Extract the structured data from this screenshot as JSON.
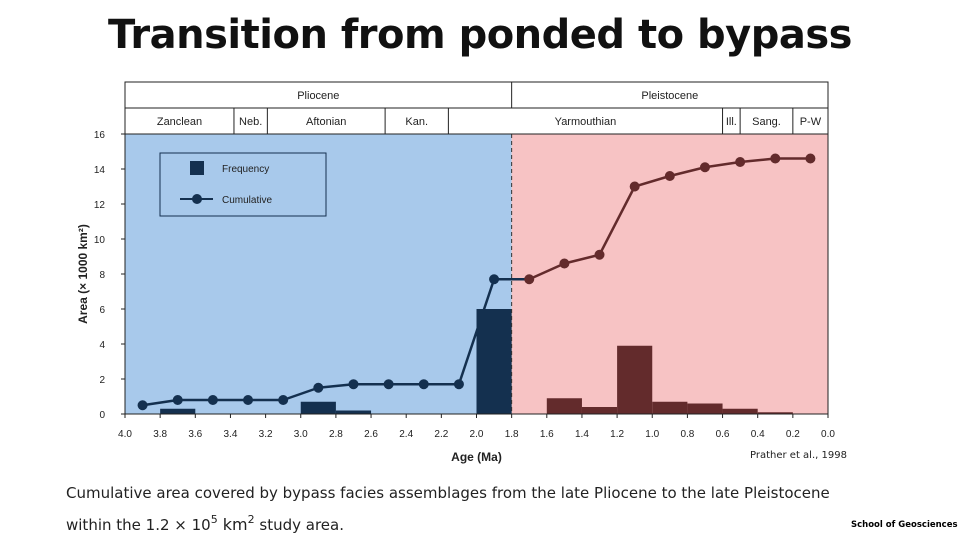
{
  "slide": {
    "title": "Transition from ponded to bypass",
    "caption_line1": "Cumulative area covered by bypass facies assemblages from the late Pliocene to the late Pleistocene",
    "caption_within": "within the 1.2 × 10",
    "caption_exp1": "5",
    "caption_km": " km",
    "caption_exp2": "2",
    "caption_end": "  study area.",
    "citation": "Prather et al., 1998",
    "footer": "School of Geosciences"
  },
  "chart_data": {
    "type": "bar+line",
    "xlabel": "Age (Ma)",
    "ylabel": "Area (× 1000 km²)",
    "xlim": [
      4.0,
      0.0
    ],
    "ylim": [
      0,
      16
    ],
    "x_ticks": [
      "4.0",
      "3.8",
      "3.6",
      "3.4",
      "3.2",
      "3.0",
      "2.8",
      "2.6",
      "2.4",
      "2.2",
      "2.0",
      "1.8",
      "1.6",
      "1.4",
      "1.2",
      "1.0",
      "0.8",
      "0.6",
      "0.4",
      "0.2",
      "0.0"
    ],
    "y_ticks": [
      "0",
      "2",
      "4",
      "6",
      "8",
      "10",
      "12",
      "14",
      "16"
    ],
    "boundary_age": 1.8,
    "legend": {
      "position": "top-left",
      "frequency_label": "Frequency",
      "cumulative_label": "Cumulative"
    },
    "periods": [
      {
        "label": "Pliocene",
        "from": 4.0,
        "to": 1.8
      },
      {
        "label": "Pleistocene",
        "from": 1.8,
        "to": 0.0
      }
    ],
    "stages": [
      {
        "label": "Zanclean",
        "from": 4.0,
        "to": 3.38
      },
      {
        "label": "Neb.",
        "from": 3.38,
        "to": 3.19
      },
      {
        "label": "Aftonian",
        "from": 3.19,
        "to": 2.52
      },
      {
        "label": "Kan.",
        "from": 2.52,
        "to": 2.16
      },
      {
        "label": "Yarmouthian",
        "from": 2.16,
        "to": 0.6
      },
      {
        "label": "Ill.",
        "from": 0.6,
        "to": 0.5
      },
      {
        "label": "Sang.",
        "from": 0.5,
        "to": 0.2
      },
      {
        "label": "P-W",
        "from": 0.2,
        "to": 0.0
      }
    ],
    "series": [
      {
        "name": "Frequency",
        "kind": "bar",
        "bars": [
          {
            "from": 3.8,
            "to": 3.6,
            "value": 0.3
          },
          {
            "from": 3.0,
            "to": 2.8,
            "value": 0.7
          },
          {
            "from": 2.8,
            "to": 2.6,
            "value": 0.2
          },
          {
            "from": 2.0,
            "to": 1.8,
            "value": 6.0
          },
          {
            "from": 1.6,
            "to": 1.4,
            "value": 0.9
          },
          {
            "from": 1.4,
            "to": 1.2,
            "value": 0.4
          },
          {
            "from": 1.2,
            "to": 1.0,
            "value": 3.9
          },
          {
            "from": 1.0,
            "to": 0.8,
            "value": 0.7
          },
          {
            "from": 0.8,
            "to": 0.6,
            "value": 0.6
          },
          {
            "from": 0.6,
            "to": 0.4,
            "value": 0.3
          },
          {
            "from": 0.4,
            "to": 0.2,
            "value": 0.1
          }
        ]
      },
      {
        "name": "Cumulative",
        "kind": "line",
        "x": [
          3.9,
          3.7,
          3.5,
          3.3,
          3.1,
          2.9,
          2.7,
          2.5,
          2.3,
          2.1,
          1.9,
          1.7,
          1.5,
          1.3,
          1.1,
          0.9,
          0.7,
          0.5,
          0.3,
          0.1
        ],
        "y": [
          0.5,
          0.8,
          0.8,
          0.8,
          0.8,
          1.5,
          1.7,
          1.7,
          1.7,
          1.7,
          7.7,
          7.7,
          8.6,
          9.1,
          13.0,
          13.6,
          14.1,
          14.4,
          14.6,
          14.6
        ]
      }
    ],
    "colors": {
      "pliocene_bg": "#a8c9eb",
      "pleistocene_bg": "#f7c3c4",
      "pliocene_mark": "#14304f",
      "pleistocene_mark": "#632b2c",
      "legend_bg": "#a8c9eb",
      "legend_mark": "#14304f"
    }
  }
}
